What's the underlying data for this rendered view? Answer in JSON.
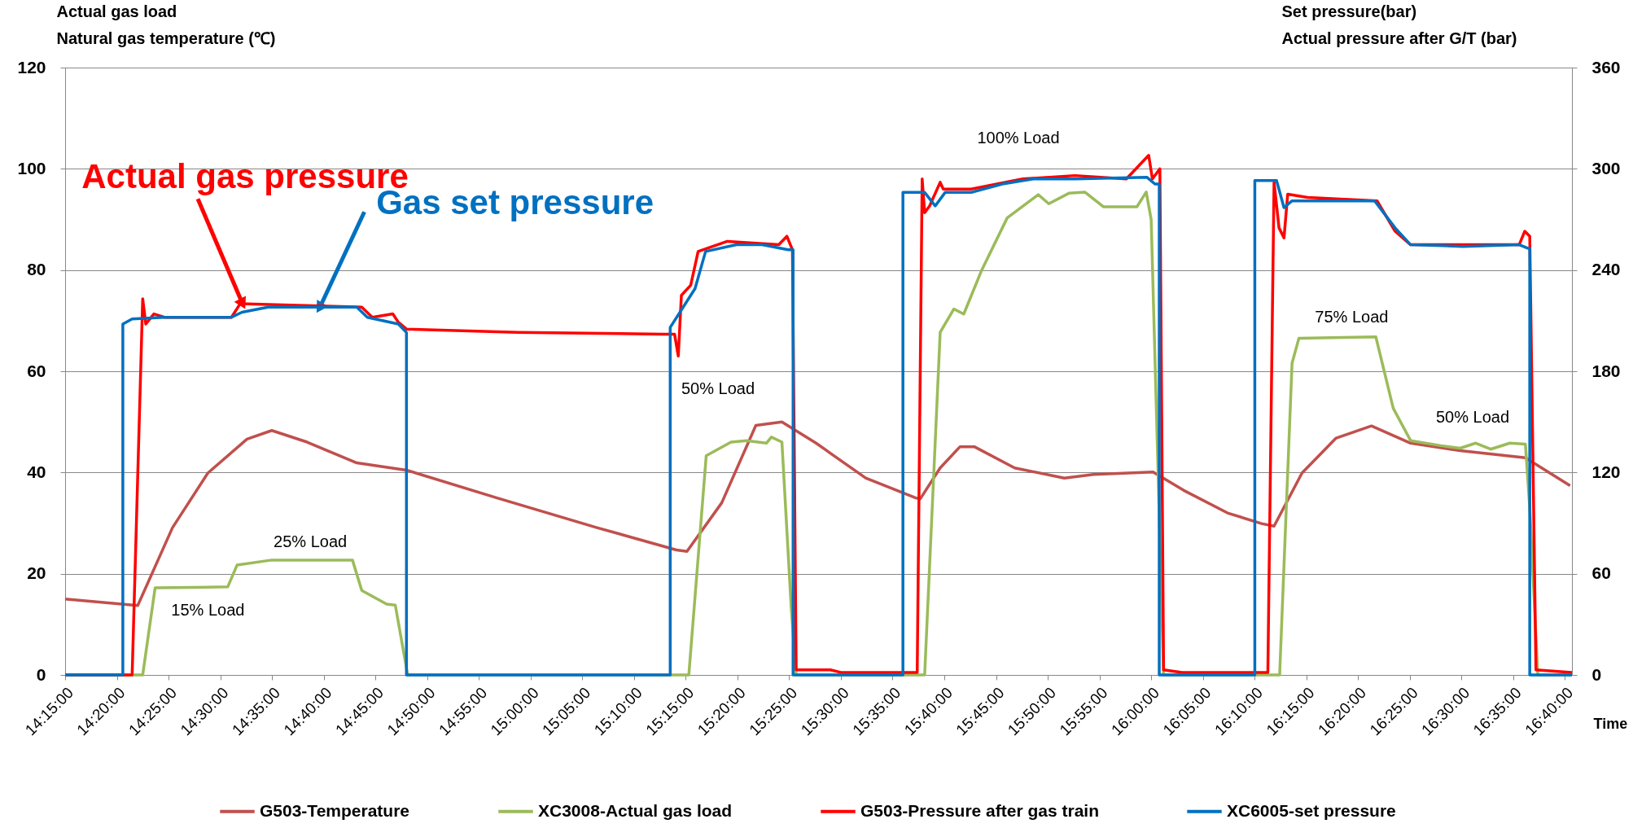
{
  "chart_data": {
    "type": "line",
    "xlabel": "Time",
    "ylabel": "Actual gas load\nNatural gas temperature (℃)",
    "y2label": "Set pressure(bar)\nActual pressure after G/T (bar)",
    "xlim": [
      14.25,
      16.678
    ],
    "xticks": [
      {
        "value": 14.25,
        "label": "14:15:00"
      },
      {
        "value": 14.3333,
        "label": "14:20:00"
      },
      {
        "value": 14.4167,
        "label": "14:25:00"
      },
      {
        "value": 14.5,
        "label": "14:30:00"
      },
      {
        "value": 14.5833,
        "label": "14:35:00"
      },
      {
        "value": 14.6667,
        "label": "14:40:00"
      },
      {
        "value": 14.75,
        "label": "14:45:00"
      },
      {
        "value": 14.8333,
        "label": "14:50:00"
      },
      {
        "value": 14.9167,
        "label": "14:55:00"
      },
      {
        "value": 15,
        "label": "15:00:00"
      },
      {
        "value": 15.0833,
        "label": "15:05:00"
      },
      {
        "value": 15.1667,
        "label": "15:10:00"
      },
      {
        "value": 15.25,
        "label": "15:15:00"
      },
      {
        "value": 15.3333,
        "label": "15:20:00"
      },
      {
        "value": 15.4167,
        "label": "15:25:00"
      },
      {
        "value": 15.5,
        "label": "15:30:00"
      },
      {
        "value": 15.5833,
        "label": "15:35:00"
      },
      {
        "value": 15.6667,
        "label": "15:40:00"
      },
      {
        "value": 15.75,
        "label": "15:45:00"
      },
      {
        "value": 15.8333,
        "label": "15:50:00"
      },
      {
        "value": 15.9167,
        "label": "15:55:00"
      },
      {
        "value": 16,
        "label": "16:00:00"
      },
      {
        "value": 16.0833,
        "label": "16:05:00"
      },
      {
        "value": 16.1667,
        "label": "16:10:00"
      },
      {
        "value": 16.25,
        "label": "16:15:00"
      },
      {
        "value": 16.3333,
        "label": "16:20:00"
      },
      {
        "value": 16.4167,
        "label": "16:25:00"
      },
      {
        "value": 16.5,
        "label": "16:30:00"
      },
      {
        "value": 16.5833,
        "label": "16:35:00"
      },
      {
        "value": 16.6667,
        "label": "16:40:00"
      }
    ],
    "ylim": [
      0,
      120
    ],
    "yticks": [
      0,
      20,
      40,
      60,
      80,
      100,
      120
    ],
    "y2lim": [
      0,
      360
    ],
    "y2ticks": [
      0,
      60,
      120,
      180,
      240,
      300,
      360
    ],
    "grid": "y",
    "legend": "bottom",
    "marker": "none",
    "line_style": "solid",
    "series": [
      {
        "name": "G503-Temperature",
        "color": "#c0504d",
        "x": [
          14.25,
          14.367,
          14.423,
          14.48,
          14.543,
          14.583,
          14.64,
          14.72,
          14.802,
          14.945,
          15.107,
          15.235,
          15.252,
          15.308,
          15.363,
          15.405,
          15.46,
          15.54,
          15.62,
          15.628,
          15.66,
          15.692,
          15.715,
          15.78,
          15.86,
          15.907,
          16.003,
          16.052,
          16.123,
          16.178,
          16.198,
          16.243,
          16.298,
          16.355,
          16.418,
          16.498,
          16.603,
          16.675
        ],
        "values": [
          15.0,
          13.7,
          29.1,
          39.9,
          46.6,
          48.3,
          46.0,
          41.9,
          40.4,
          35.0,
          29.1,
          24.7,
          24.4,
          34.0,
          49.3,
          50.0,
          45.8,
          38.9,
          35.0,
          34.8,
          40.9,
          45.1,
          45.1,
          40.9,
          38.9,
          39.6,
          40.1,
          36.5,
          32.0,
          29.9,
          29.4,
          39.9,
          46.8,
          49.2,
          45.8,
          44.3,
          42.9,
          37.4
        ]
      },
      {
        "name": "XC3008-Actual gas load",
        "color": "#9bbb59",
        "x": [
          14.25,
          14.375,
          14.395,
          14.512,
          14.527,
          14.583,
          14.713,
          14.728,
          14.768,
          14.782,
          14.802,
          15.255,
          15.283,
          15.323,
          15.348,
          15.38,
          15.388,
          15.405,
          15.42,
          15.428,
          15.635,
          15.66,
          15.682,
          15.698,
          15.727,
          15.768,
          15.818,
          15.835,
          15.868,
          15.893,
          15.923,
          15.977,
          15.992,
          16.0,
          16.02,
          16.207,
          16.227,
          16.238,
          16.362,
          16.39,
          16.418,
          16.467,
          16.498,
          16.523,
          16.547,
          16.578,
          16.603,
          16.61,
          16.623,
          16.678
        ],
        "values": [
          0,
          0,
          17.2,
          17.4,
          21.7,
          22.7,
          22.7,
          16.7,
          14.0,
          13.8,
          0,
          0,
          43.3,
          46.0,
          46.3,
          45.8,
          47.0,
          46.0,
          13.3,
          0,
          0,
          67.7,
          72.3,
          71.3,
          80.0,
          90.3,
          94.9,
          93.1,
          95.2,
          95.4,
          92.5,
          92.5,
          95.4,
          90.0,
          0,
          0,
          61.6,
          66.5,
          66.8,
          52.7,
          46.3,
          45.3,
          44.8,
          45.8,
          44.6,
          45.8,
          45.6,
          33.0,
          0,
          0
        ]
      },
      {
        "name": "G503-Pressure after gas train",
        "color": "#ff0000",
        "axis": "y2",
        "x": [
          14.25,
          14.358,
          14.375,
          14.38,
          14.393,
          14.41,
          14.518,
          14.532,
          14.728,
          14.745,
          14.778,
          14.787,
          14.8,
          14.98,
          15.215,
          15.232,
          15.238,
          15.243,
          15.258,
          15.27,
          15.317,
          15.4,
          15.413,
          15.422,
          15.428,
          15.483,
          15.5,
          15.623,
          15.631,
          15.635,
          15.643,
          15.66,
          15.665,
          15.71,
          15.793,
          15.877,
          15.96,
          15.996,
          16.002,
          16.014,
          16.02,
          16.05,
          16.188,
          16.198,
          16.206,
          16.214,
          16.22,
          16.252,
          16.364,
          16.393,
          16.418,
          16.593,
          16.602,
          16.61,
          16.62,
          16.678
        ],
        "values": [
          0,
          0,
          223,
          208,
          214,
          212,
          212,
          220,
          218,
          212,
          214,
          209,
          205,
          203,
          202,
          202,
          189,
          225,
          231,
          251,
          257,
          255,
          260,
          252,
          3,
          3,
          1.5,
          1.5,
          294,
          274,
          278,
          292,
          288,
          288,
          294,
          296,
          294,
          308,
          294,
          300,
          3,
          1.5,
          1.5,
          292,
          265,
          259,
          285,
          283,
          281,
          263,
          255,
          255,
          263,
          260,
          3,
          1.5
        ]
      },
      {
        "name": "XC6005-set pressure",
        "color": "#0070c0",
        "axis": "y2",
        "x": [
          14.25,
          14.343,
          14.343,
          14.358,
          14.41,
          14.518,
          14.535,
          14.577,
          14.72,
          14.737,
          14.787,
          14.8,
          14.8,
          15.225,
          15.225,
          15.265,
          15.282,
          15.332,
          15.373,
          15.415,
          15.423,
          15.423,
          15.6,
          15.6,
          15.635,
          15.652,
          15.668,
          15.71,
          15.76,
          15.81,
          15.877,
          15.993,
          16.006,
          16.013,
          16.013,
          16.167,
          16.167,
          16.202,
          16.214,
          16.227,
          16.36,
          16.393,
          16.418,
          16.502,
          16.593,
          16.606,
          16.61,
          16.61,
          16.678
        ],
        "values": [
          0,
          0,
          208,
          211,
          212,
          212,
          215,
          218,
          218,
          212,
          208,
          203,
          0,
          0,
          206,
          229,
          251,
          255,
          255,
          252,
          252,
          0,
          0,
          286,
          286,
          278,
          286,
          286,
          291,
          294,
          294,
          295,
          291,
          291,
          0,
          0,
          293,
          293,
          277,
          281,
          281,
          265,
          255,
          254,
          255,
          253,
          253,
          0,
          0
        ]
      }
    ],
    "annotations": [
      {
        "text": "15% Load",
        "x": 14.48,
        "y": 17.4
      },
      {
        "text": "25% Load",
        "x": 14.645,
        "y": 22.7
      },
      "50% Load",
      "100% Load",
      {
        "text": "75% Load",
        "x": 16.323,
        "y": 66.7
      },
      {
        "text": "50% Load",
        "x": 16.518,
        "y": 45.6
      },
      {
        "text": "Actual gas pressure",
        "x": 14.536,
        "y": 73.3
      },
      {
        "text": "Gas set pressure",
        "x": 14.66,
        "y": 72.5
      }
    ]
  }
}
